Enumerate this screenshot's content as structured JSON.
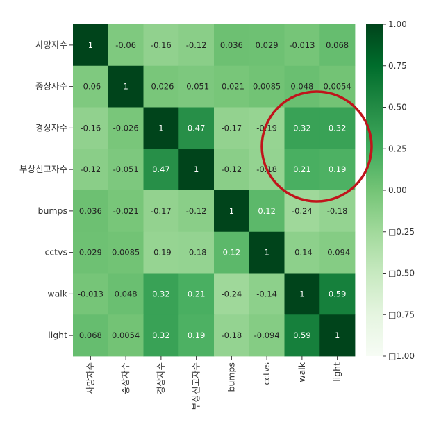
{
  "chart_data": {
    "type": "heatmap",
    "title": "",
    "xlabel": "",
    "ylabel": "",
    "rows": [
      "사망자수",
      "중상자수",
      "경상자수",
      "부상신고자수",
      "bumps",
      "cctvs",
      "walk",
      "light"
    ],
    "columns": [
      "사망자수",
      "중상자수",
      "경상자수",
      "부상신고자수",
      "bumps",
      "cctvs",
      "walk",
      "light"
    ],
    "values": [
      [
        1,
        -0.06,
        -0.16,
        -0.12,
        0.036,
        0.029,
        -0.013,
        0.068
      ],
      [
        -0.06,
        1,
        -0.026,
        -0.051,
        -0.021,
        0.0085,
        0.048,
        0.0054
      ],
      [
        -0.16,
        -0.026,
        1,
        0.47,
        -0.17,
        -0.19,
        0.32,
        0.32
      ],
      [
        -0.12,
        -0.051,
        0.47,
        1,
        -0.12,
        -0.18,
        0.21,
        0.19
      ],
      [
        0.036,
        -0.021,
        -0.17,
        -0.12,
        1,
        0.12,
        -0.24,
        -0.18
      ],
      [
        0.029,
        0.0085,
        -0.19,
        -0.18,
        0.12,
        1,
        -0.14,
        -0.094
      ],
      [
        -0.013,
        0.048,
        0.32,
        0.21,
        -0.24,
        -0.14,
        1,
        0.59
      ],
      [
        0.068,
        0.0054,
        0.32,
        0.19,
        -0.18,
        -0.094,
        0.59,
        1
      ]
    ],
    "cell_labels": [
      [
        "1",
        "-0.06",
        "-0.16",
        "-0.12",
        "0.036",
        "0.029",
        "-0.013",
        "0.068"
      ],
      [
        "-0.06",
        "1",
        "-0.026",
        "-0.051",
        "-0.021",
        "0.0085",
        "0.048",
        "0.0054"
      ],
      [
        "-0.16",
        "-0.026",
        "1",
        "0.47",
        "-0.17",
        "-0.19",
        "0.32",
        "0.32"
      ],
      [
        "-0.12",
        "-0.051",
        "0.47",
        "1",
        "-0.12",
        "-0.18",
        "0.21",
        "0.19"
      ],
      [
        "0.036",
        "-0.021",
        "-0.17",
        "-0.12",
        "1",
        "0.12",
        "-0.24",
        "-0.18"
      ],
      [
        "0.029",
        "0.0085",
        "-0.19",
        "-0.18",
        "0.12",
        "1",
        "-0.14",
        "-0.094"
      ],
      [
        "-0.013",
        "0.048",
        "0.32",
        "0.21",
        "-0.24",
        "-0.14",
        "1",
        "0.59"
      ],
      [
        "0.068",
        "0.0054",
        "0.32",
        "0.19",
        "-0.18",
        "-0.094",
        "0.59",
        "1"
      ]
    ],
    "colormap": "Greens",
    "vmin": -1.0,
    "vmax": 1.0,
    "colorbar_ticks": [
      1.0,
      0.75,
      0.5,
      0.25,
      0.0,
      -0.25,
      -0.5,
      -0.75,
      -1.0
    ],
    "colorbar_tick_labels": [
      "1.00",
      "0.75",
      "0.50",
      "0.25",
      "0.00",
      "□0.25",
      "□0.50",
      "□0.75",
      "□1.00"
    ],
    "annotation": {
      "shape": "circle",
      "color": "#c0141b",
      "highlights": "경상자수/부상신고자수 × walk/light"
    }
  }
}
